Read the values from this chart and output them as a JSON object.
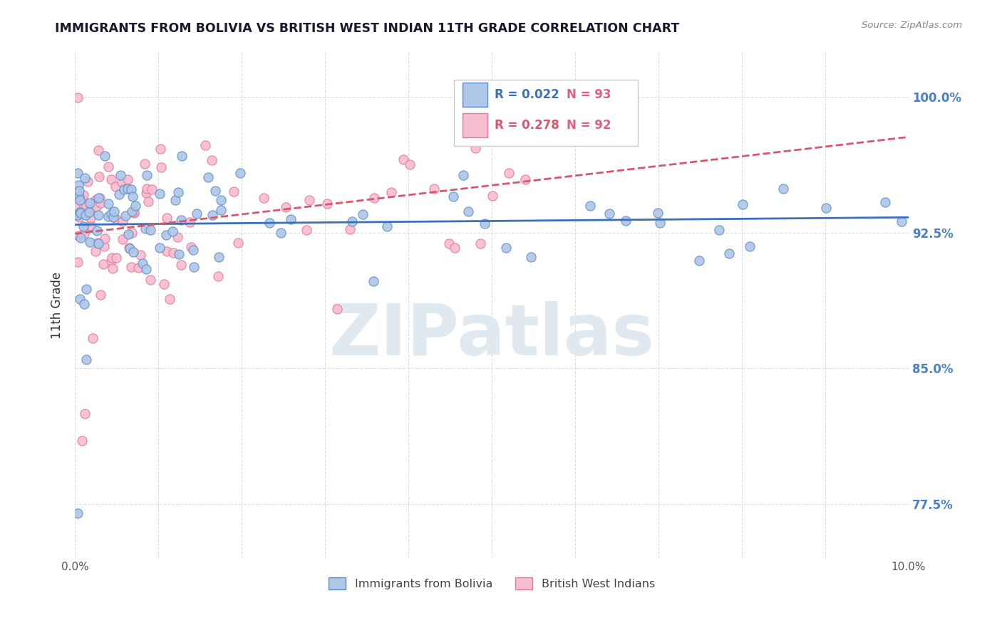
{
  "title": "IMMIGRANTS FROM BOLIVIA VS BRITISH WEST INDIAN 11TH GRADE CORRELATION CHART",
  "source": "Source: ZipAtlas.com",
  "ylabel": "11th Grade",
  "y_ticks": [
    0.775,
    0.85,
    0.925,
    1.0
  ],
  "y_tick_labels": [
    "77.5%",
    "85.0%",
    "92.5%",
    "100.0%"
  ],
  "x_min": 0.0,
  "x_max": 0.1,
  "y_min": 0.745,
  "y_max": 1.025,
  "legend_blue_r": "R = 0.022",
  "legend_blue_n": "N = 93",
  "legend_pink_r": "R = 0.278",
  "legend_pink_n": "N = 92",
  "legend_label_blue": "Immigrants from Bolivia",
  "legend_label_pink": "British West Indians",
  "blue_fill": "#aec6e8",
  "pink_fill": "#f7bdd0",
  "blue_edge": "#5b8ec7",
  "pink_edge": "#e8759a",
  "blue_line": "#3a6fba",
  "pink_line": "#d9566e",
  "watermark": "ZIPatlas",
  "watermark_color": "#e0e8f0",
  "title_color": "#1a1a2e",
  "source_color": "#888888",
  "ylabel_color": "#333333",
  "yaxis_color": "#4a7ec7",
  "grid_color": "#dddddd",
  "legend_r_blue_color": "#3a6fba",
  "legend_n_blue_color": "#e06080",
  "legend_r_pink_color": "#d9566e",
  "legend_n_pink_color": "#e06080"
}
